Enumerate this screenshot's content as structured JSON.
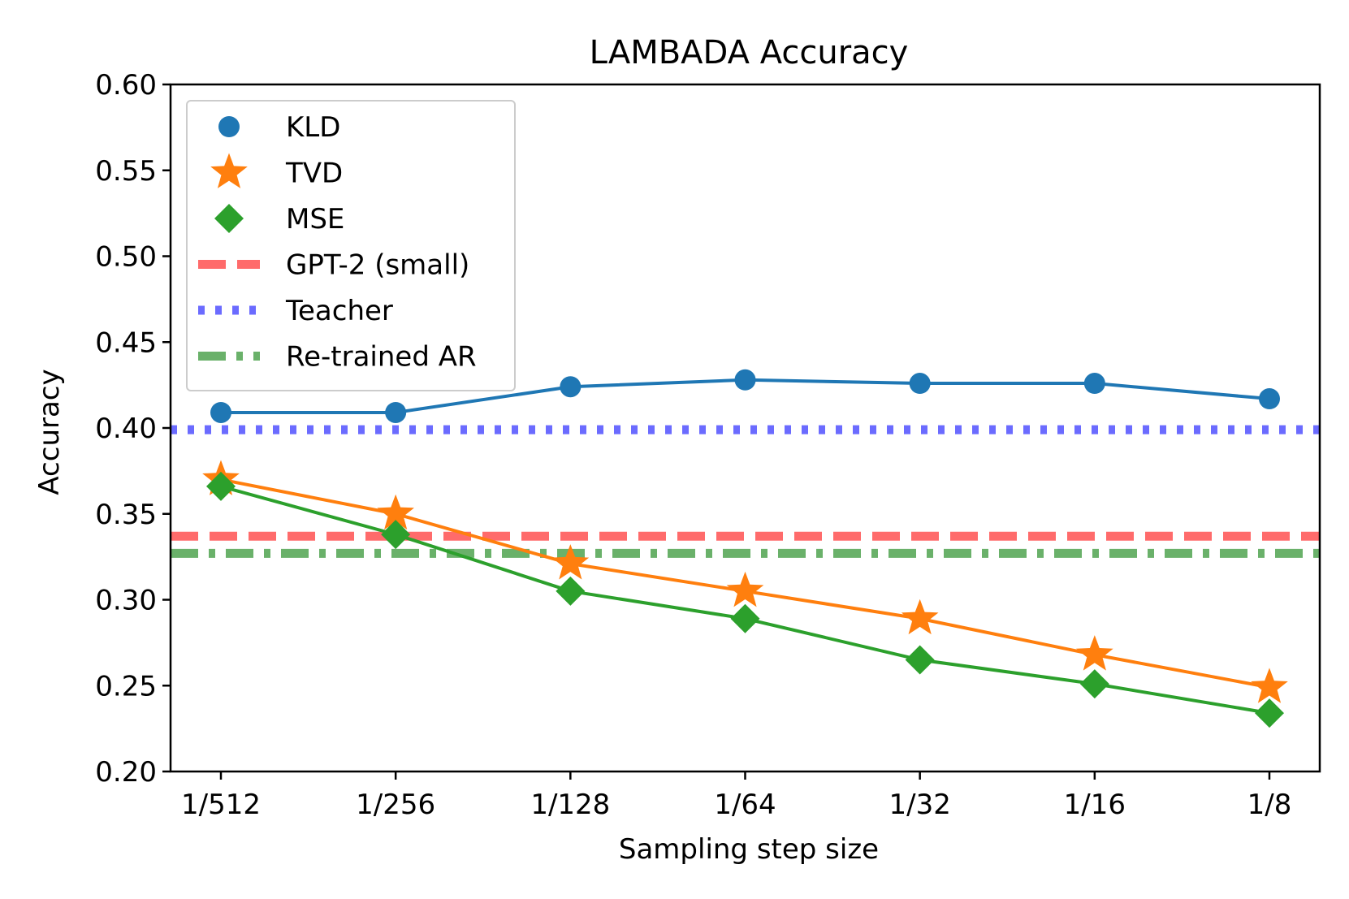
{
  "chart_data": {
    "type": "line",
    "title": "LAMBADA Accuracy",
    "xlabel": "Sampling step size",
    "ylabel": "Accuracy",
    "categories": [
      "1/512",
      "1/256",
      "1/128",
      "1/64",
      "1/32",
      "1/16",
      "1/8"
    ],
    "ylim": [
      0.2,
      0.6
    ],
    "yticks": [
      "0.20",
      "0.25",
      "0.30",
      "0.35",
      "0.40",
      "0.45",
      "0.50",
      "0.55",
      "0.60"
    ],
    "grid": false,
    "legend_position": "upper-left",
    "series": [
      {
        "name": "KLD",
        "color": "#1f77b4",
        "marker": "circle",
        "values": [
          0.409,
          0.409,
          0.424,
          0.428,
          0.426,
          0.426,
          0.417
        ]
      },
      {
        "name": "TVD",
        "color": "#ff7f0e",
        "marker": "star",
        "values": [
          0.37,
          0.35,
          0.321,
          0.305,
          0.289,
          0.268,
          0.249
        ]
      },
      {
        "name": "MSE",
        "color": "#2ca02c",
        "marker": "diamond",
        "values": [
          0.366,
          0.338,
          0.305,
          0.289,
          0.265,
          0.251,
          0.234
        ]
      }
    ],
    "reference_lines": [
      {
        "name": "GPT-2 (small)",
        "value": 0.337,
        "color": "#ff6b6b",
        "style": "dashed"
      },
      {
        "name": "Teacher",
        "value": 0.399,
        "color": "#6b6bff",
        "style": "dotted"
      },
      {
        "name": "Re-trained AR",
        "value": 0.327,
        "color": "#6ab16a",
        "style": "dashdot"
      }
    ]
  }
}
